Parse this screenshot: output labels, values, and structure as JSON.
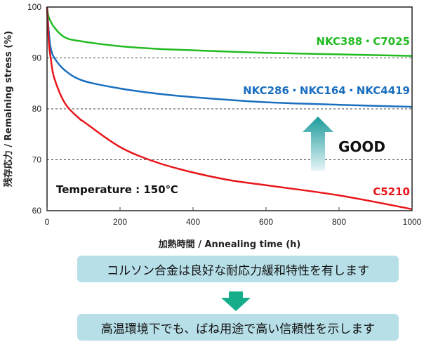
{
  "chart_data": {
    "type": "line",
    "xlabel": "加熱時間 / Annealing time (h)",
    "ylabel": "残存応力 / Remaining stress (%)",
    "xlim": [
      0,
      1000
    ],
    "ylim": [
      60,
      100
    ],
    "xticks": [
      "0",
      "200",
      "400",
      "600",
      "800",
      "1000"
    ],
    "yticks": [
      "60",
      "70",
      "80",
      "90",
      "100"
    ],
    "grid": "dashed horizontal at 70, 80, 90",
    "annotation": "Temperature : 150℃",
    "good_label": "GOOD",
    "series": [
      {
        "name": "NKC388・C7025",
        "color": "#22bb22",
        "x": [
          0,
          5,
          20,
          50,
          100,
          200,
          300,
          400,
          600,
          800,
          1000
        ],
        "y": [
          100,
          98,
          96,
          94,
          93.2,
          92.3,
          91.8,
          91.5,
          91.0,
          90.7,
          90.4
        ]
      },
      {
        "name": "NKC286・NKC164・NKC4419",
        "color": "#1a6fbf",
        "x": [
          0,
          5,
          10,
          20,
          50,
          100,
          200,
          300,
          400,
          600,
          800,
          1000
        ],
        "y": [
          100,
          95,
          92,
          90,
          87.5,
          85.5,
          84,
          83,
          82.3,
          81.3,
          80.8,
          80.4
        ]
      },
      {
        "name": "C5210",
        "color": "#e8161b",
        "x": [
          0,
          5,
          10,
          20,
          50,
          90,
          100,
          200,
          300,
          400,
          500,
          600,
          800,
          1000
        ],
        "y": [
          100,
          93,
          90,
          86,
          81,
          78,
          77.5,
          72.5,
          69.5,
          67.5,
          66,
          65,
          63,
          60.3
        ]
      }
    ]
  },
  "messages": {
    "line1": "コルソン合金は良好な耐応力緩和特性を有します",
    "line2": "高温環境下でも、ばね用途で高い信頼性を示します"
  },
  "colors": {
    "box": "#b7dfe8",
    "arrow": "#16ad8a"
  }
}
